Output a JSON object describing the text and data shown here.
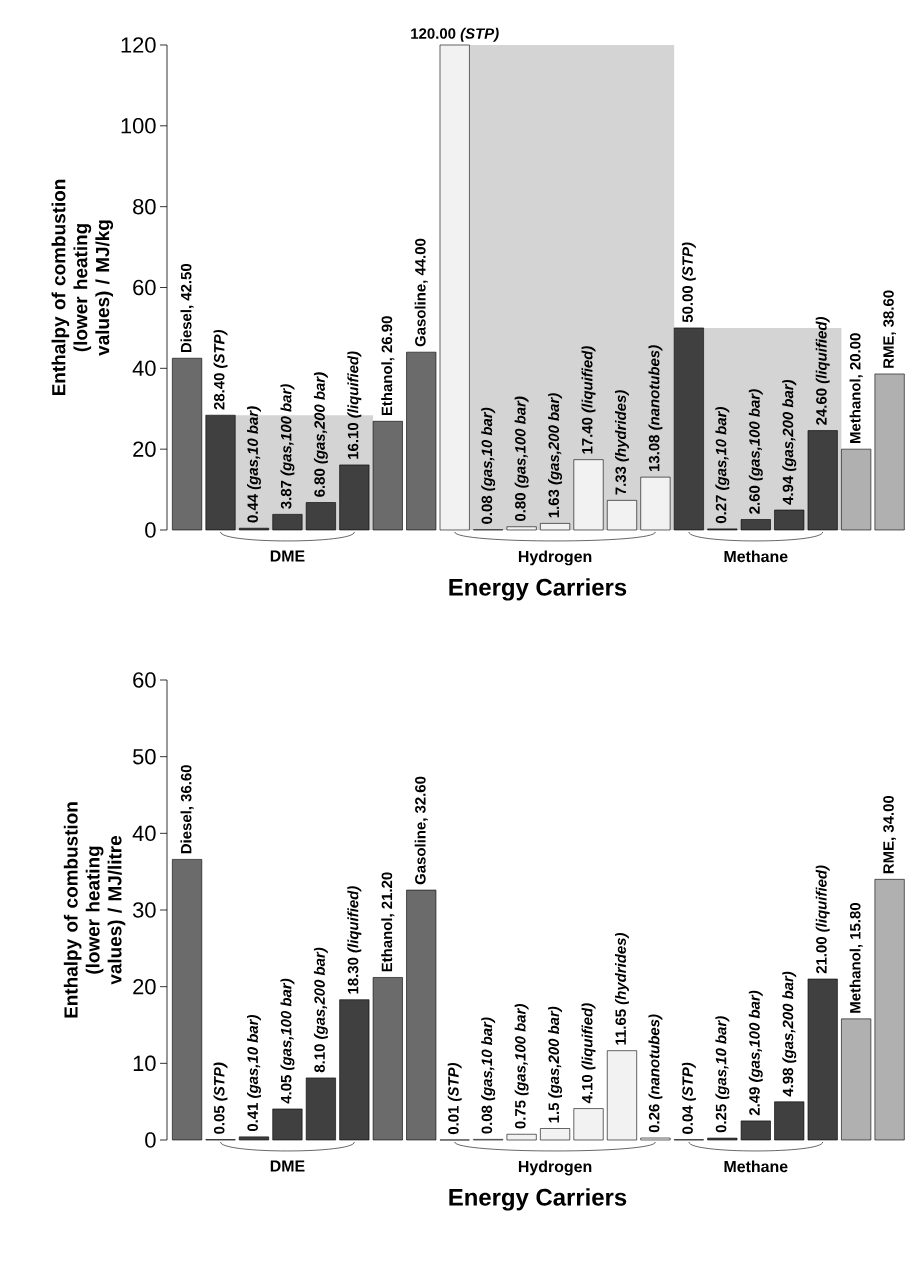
{
  "chart_data": [
    {
      "type": "bar",
      "xlabel": "Energy Carriers",
      "ylabel": "Enthalpy of combustion (lower heating values) / MJ/kg",
      "categories": [
        null,
        null,
        null,
        "DME",
        null,
        null,
        null,
        null,
        null,
        null,
        null,
        "Hydrogen",
        null,
        null,
        null,
        null,
        null,
        "Methane",
        null,
        null,
        null,
        null
      ],
      "values": [
        42.5,
        28.4,
        0.44,
        3.87,
        6.8,
        16.1,
        26.9,
        44.0,
        120.0,
        0.08,
        0.8,
        1.63,
        17.4,
        7.33,
        13.08,
        50.0,
        0.27,
        2.6,
        4.94,
        24.6,
        20.0,
        38.6
      ],
      "colors": [
        "#6b6b6b",
        "#404040",
        "#404040",
        "#404040",
        "#404040",
        "#404040",
        "#6b6b6b",
        "#6b6b6b",
        "#f2f2f2",
        "#f2f2f2",
        "#f2f2f2",
        "#f2f2f2",
        "#f2f2f2",
        "#f2f2f2",
        "#f2f2f2",
        "#404040",
        "#404040",
        "#404040",
        "#404040",
        "#404040",
        "#b0b0b0",
        "#b0b0b0"
      ],
      "value_labels": [
        "Diesel, 42.50",
        "28.40 *(STP)*",
        "0.44 *(gas,10 bar)*",
        "3.87 *(gas,100 bar)*",
        "6.80 *(gas,200 bar)*",
        "16.10 *(liquified)*",
        "Ethanol, 26.90",
        "Gasoline, 44.00",
        "120.00 *(STP)*",
        "0.08 *(gas,10 bar)*",
        "0.80 *(gas,100 bar)*",
        "1.63 *(gas,200 bar)*",
        "17.40 *(liquified)*",
        "7.33 *(hydrides)*",
        "13.08 *(nanotubes)*",
        "50.00 *(STP)*",
        "0.27 *(gas,10 bar)*",
        "2.60 *(gas,100 bar)*",
        "4.94 *(gas,200 bar)*",
        "24.60 *(liquified)*",
        "Methanol, 20.00",
        "RME, 38.60"
      ],
      "ylim": [
        0,
        120
      ],
      "yticks": [
        0,
        20,
        40,
        60,
        80,
        100,
        120
      ]
    },
    {
      "type": "bar",
      "xlabel": "Energy Carriers",
      "ylabel": "Enthalpy of combustion (lower heating values) / MJ/litre",
      "categories": [
        null,
        null,
        null,
        "DME",
        null,
        null,
        null,
        null,
        null,
        null,
        null,
        "Hydrogen",
        null,
        null,
        null,
        null,
        null,
        "Methane",
        null,
        null,
        null,
        null
      ],
      "values": [
        36.6,
        0.05,
        0.41,
        4.05,
        8.1,
        18.3,
        21.2,
        32.6,
        0.01,
        0.08,
        0.75,
        1.5,
        4.1,
        11.65,
        0.26,
        0.04,
        0.25,
        2.49,
        4.98,
        21.0,
        15.8,
        34.0
      ],
      "colors": [
        "#6b6b6b",
        "#404040",
        "#404040",
        "#404040",
        "#404040",
        "#404040",
        "#6b6b6b",
        "#6b6b6b",
        "#f2f2f2",
        "#f2f2f2",
        "#f2f2f2",
        "#f2f2f2",
        "#f2f2f2",
        "#f2f2f2",
        "#f2f2f2",
        "#404040",
        "#404040",
        "#404040",
        "#404040",
        "#404040",
        "#b0b0b0",
        "#b0b0b0"
      ],
      "value_labels": [
        "Diesel, 36.60",
        "0.05 *(STP)*",
        "0.41 *(gas,10 bar)*",
        "4.05 *(gas,100 bar)*",
        "8.10 *(gas,200 bar)*",
        "18.30 *(liquified)*",
        "Ethanol, 21.20",
        "Gasoline, 32.60",
        "0.01 *(STP)*",
        "0.08 *(gas,10 bar)*",
        "0.75 *(gas,100 bar)*",
        "1.5 *(gas,200 bar)*",
        "4.10 *(liquified)*",
        "11.65 *(hydrides)*",
        "0.26 *(nanotubes)*",
        "0.04 *(STP)*",
        "0.25 *(gas,10 bar)*",
        "2.49 *(gas,100 bar)*",
        "4.98 *(gas,200 bar)*",
        "21.00 *(liquified)*",
        "Methanol, 15.80",
        "RME, 34.00"
      ],
      "ylim": [
        0,
        60
      ],
      "yticks": [
        0,
        10,
        20,
        30,
        40,
        50,
        60
      ]
    }
  ]
}
